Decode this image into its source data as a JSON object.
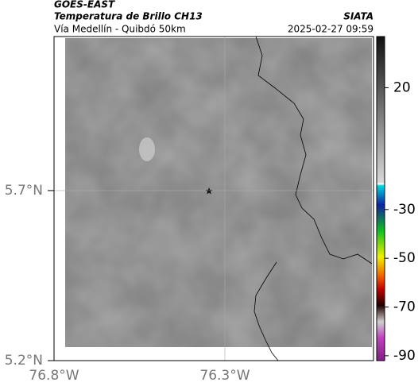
{
  "header": {
    "left_top": "GOES-EAST",
    "left_title": "Temperatura de Brillo CH13",
    "left_subtitle": "Vía Medellín - Quibdó 50km",
    "right_top": "SIATA",
    "right_subtitle": "2025-02-27 09:59"
  },
  "map": {
    "xlim": [
      -76.8,
      -75.865
    ],
    "ylim": [
      5.2,
      6.153
    ],
    "xticks": [
      {
        "value": -76.8,
        "label": "76.8°W"
      },
      {
        "value": -76.3,
        "label": "76.3°W"
      }
    ],
    "yticks": [
      {
        "value": 5.7,
        "label": "5.7°N"
      },
      {
        "value": 5.2,
        "label": "5.2°N"
      }
    ],
    "grid": true
  },
  "colorbar": {
    "lim": [
      -92,
      41
    ],
    "ticks": [
      20,
      -30,
      -50,
      -70,
      -90
    ]
  }
}
